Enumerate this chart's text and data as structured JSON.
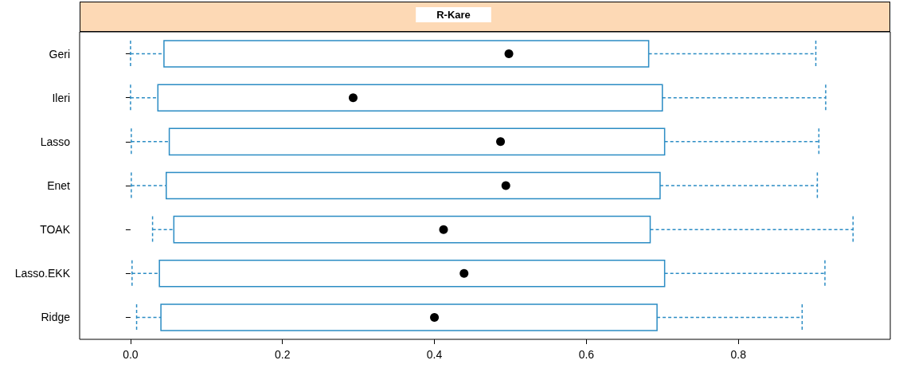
{
  "chart_data": {
    "type": "box",
    "title": "R-Kare",
    "orientation": "horizontal",
    "categories": [
      "Geri",
      "Ileri",
      "Lasso",
      "Enet",
      "TOAK",
      "Lasso.EKK",
      "Ridge"
    ],
    "xlim": [
      -0.067,
      1.0
    ],
    "xticks": [
      {
        "value": 0,
        "label": "0.0"
      },
      0.2,
      0.4,
      0.6,
      0.8
    ],
    "grid": false,
    "line_style": "dashed",
    "marker": "circle",
    "series": [
      {
        "color": "#2b8cc4",
        "boxes": [
          {
            "low": 0.0,
            "q1": 0.044,
            "median": 0.498,
            "q3": 0.682,
            "high": 0.902
          },
          {
            "low": 0.0,
            "q1": 0.036,
            "median": 0.293,
            "q3": 0.7,
            "high": 0.915
          },
          {
            "low": 0.001,
            "q1": 0.051,
            "median": 0.487,
            "q3": 0.703,
            "high": 0.906
          },
          {
            "low": 0.001,
            "q1": 0.047,
            "median": 0.494,
            "q3": 0.697,
            "high": 0.904
          },
          {
            "low": 0.029,
            "q1": 0.057,
            "median": 0.412,
            "q3": 0.684,
            "high": 0.951
          },
          {
            "low": 0.002,
            "q1": 0.038,
            "median": 0.439,
            "q3": 0.703,
            "high": 0.914
          },
          {
            "low": 0.008,
            "q1": 0.04,
            "median": 0.4,
            "q3": 0.693,
            "high": 0.884
          }
        ]
      }
    ]
  }
}
